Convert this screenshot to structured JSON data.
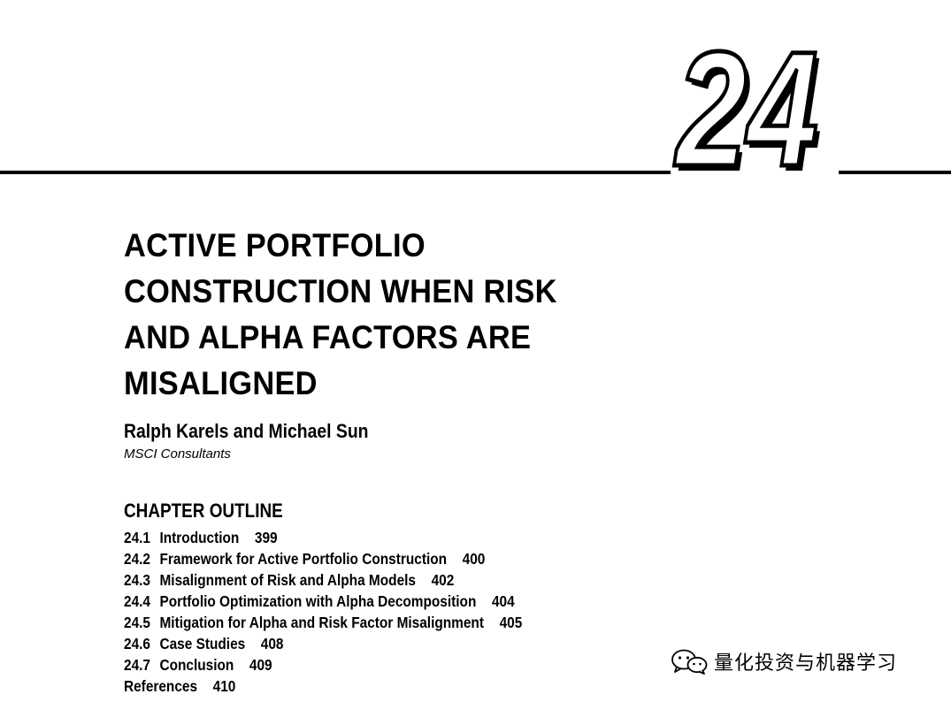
{
  "chapter": {
    "number": "24"
  },
  "title": {
    "lines": [
      "ACTIVE PORTFOLIO",
      "CONSTRUCTION WHEN RISK",
      "AND ALPHA FACTORS ARE",
      "MISALIGNED"
    ]
  },
  "authors": "Ralph Karels and Michael Sun",
  "affiliation": "MSCI Consultants",
  "outline": {
    "heading": "CHAPTER OUTLINE",
    "items": [
      {
        "num": "24.1",
        "title": "Introduction",
        "page": "399"
      },
      {
        "num": "24.2",
        "title": "Framework for Active Portfolio Construction",
        "page": "400"
      },
      {
        "num": "24.3",
        "title": "Misalignment of Risk and Alpha Models",
        "page": "402"
      },
      {
        "num": "24.4",
        "title": "Portfolio Optimization with Alpha Decomposition",
        "page": "404"
      },
      {
        "num": "24.5",
        "title": "Mitigation for Alpha and Risk Factor Misalignment",
        "page": "405"
      },
      {
        "num": "24.6",
        "title": "Case Studies",
        "page": "408"
      },
      {
        "num": "24.7",
        "title": "Conclusion",
        "page": "409"
      },
      {
        "num": "",
        "title": "References",
        "page": "410"
      }
    ]
  },
  "watermark": {
    "icon": "wechat-icon",
    "text": "量化投资与机器学习"
  }
}
